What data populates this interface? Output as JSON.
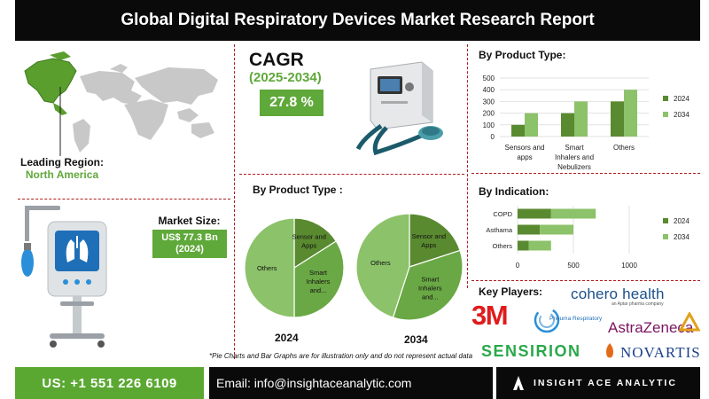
{
  "header": {
    "title": "Global Digital Respiratory Devices Market  Research Report"
  },
  "region": {
    "label": "Leading Region:",
    "value": "North America"
  },
  "cagr": {
    "label": "CAGR",
    "period": "(2025-2034)",
    "value": "27.8 %"
  },
  "market_size": {
    "label": "Market Size:",
    "value_line1": "US$ 77.3 Bn",
    "value_line2": "(2024)"
  },
  "pie_section": {
    "title": "By Product Type :",
    "year_2024": "2024",
    "year_2034": "2034"
  },
  "disclaimer": "*Pie Charts and Bar Graphs are for illustration only and do not represent actual data",
  "key_players": {
    "title": "Key Players:",
    "logos": [
      "cohero health",
      "3M",
      "Pneuma Respiratory",
      "AstraZeneca",
      "SENSIRION",
      "NOVARTIS"
    ],
    "cohero_sub": "an Aptar pharma company"
  },
  "footer": {
    "phone": "US: +1 551 226 6109",
    "email": "Email: info@insightaceanalytic.com",
    "brand": "INSIGHT ACE ANALYTIC"
  },
  "colors": {
    "dark_green": "#5a8a30",
    "light_green": "#8cc26a",
    "accent_green": "#5fa83a",
    "divider_red": "#b01a1a"
  },
  "chart_data": [
    {
      "type": "bar",
      "title": "By Product Type:",
      "categories": [
        "Sensors and apps",
        "Smart Inhalers and Nebulizers",
        "Others"
      ],
      "series": [
        {
          "name": "2024",
          "values": [
            100,
            200,
            300
          ]
        },
        {
          "name": "2034",
          "values": [
            200,
            300,
            400
          ]
        }
      ],
      "yticks": [
        "0",
        "100",
        "200",
        "300",
        "400",
        "500"
      ],
      "ylim": [
        0,
        500
      ],
      "legend": "right"
    },
    {
      "type": "bar",
      "orientation": "horizontal",
      "title": "By Indication:",
      "categories": [
        "COPD",
        "Asthama",
        "Others"
      ],
      "series": [
        {
          "name": "2024",
          "values": [
            300,
            200,
            100
          ]
        },
        {
          "name": "2034",
          "values": [
            400,
            300,
            200
          ]
        }
      ],
      "stacked": true,
      "xticks": [
        "0",
        "500",
        "1000"
      ],
      "xlim": [
        0,
        1000
      ],
      "legend": "right"
    },
    {
      "type": "pie",
      "year": "2024",
      "slices": [
        {
          "label": "Sensor and Apps",
          "value": 16
        },
        {
          "label": "Smart Inhalers and...",
          "value": 34
        },
        {
          "label": "Others",
          "value": 50
        }
      ]
    },
    {
      "type": "pie",
      "year": "2034",
      "slices": [
        {
          "label": "Sensor and Apps",
          "value": 20
        },
        {
          "label": "Smart Inhalers and...",
          "value": 35
        },
        {
          "label": "Others",
          "value": 45
        }
      ]
    }
  ]
}
